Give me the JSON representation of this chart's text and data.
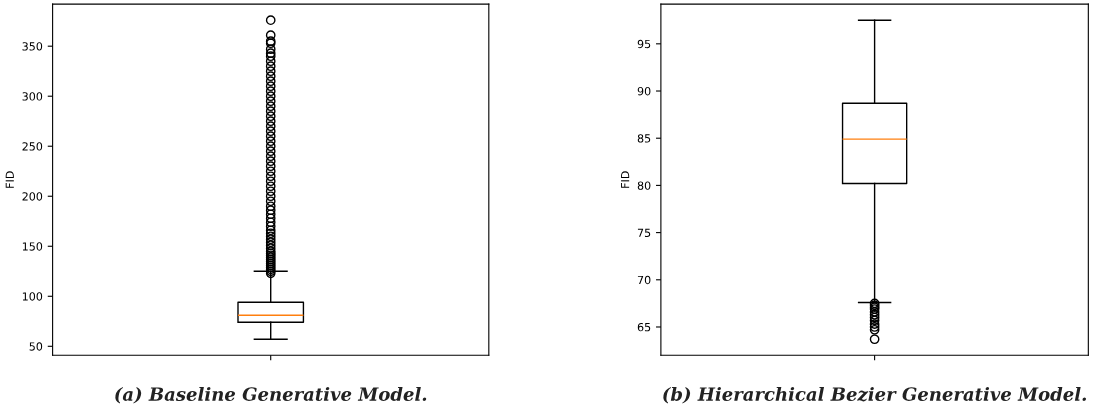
{
  "chart_data": [
    {
      "type": "box",
      "ylabel": "FID",
      "categories": [
        null
      ],
      "ylim": [
        41,
        392
      ],
      "yticks": [
        50,
        100,
        150,
        200,
        250,
        300,
        350
      ],
      "boxes": [
        {
          "low": 57,
          "q1": 74,
          "median": 81,
          "q3": 94,
          "high": 125,
          "outliers": [
            123,
            125,
            127,
            129,
            131,
            133,
            135,
            137,
            139,
            141,
            143,
            145,
            148,
            151,
            154,
            157,
            160,
            163,
            166,
            170,
            174,
            178,
            182,
            186,
            190,
            195,
            200,
            205,
            210,
            215,
            220,
            225,
            230,
            235,
            240,
            245,
            250,
            255,
            260,
            265,
            270,
            275,
            280,
            285,
            290,
            295,
            300,
            305,
            310,
            315,
            320,
            325,
            330,
            335,
            340,
            343,
            347,
            353,
            355,
            361,
            376
          ]
        }
      ],
      "annotations": [
        "(a) Baseline Generative Model."
      ]
    },
    {
      "type": "box",
      "ylabel": "FID",
      "categories": [
        null
      ],
      "ylim": [
        62.0,
        99.2
      ],
      "yticks": [
        65,
        70,
        75,
        80,
        85,
        90,
        95
      ],
      "boxes": [
        {
          "low": 67.6,
          "q1": 80.2,
          "median": 84.9,
          "q3": 88.7,
          "high": 97.5,
          "outliers": [
            63.7,
            64.7,
            65.0,
            65.3,
            65.7,
            66.0,
            66.3,
            66.6,
            66.9,
            67.1,
            67.3,
            67.5
          ]
        }
      ],
      "annotations": [
        "(b) Hierarchical Bezier Generative Model."
      ]
    }
  ]
}
